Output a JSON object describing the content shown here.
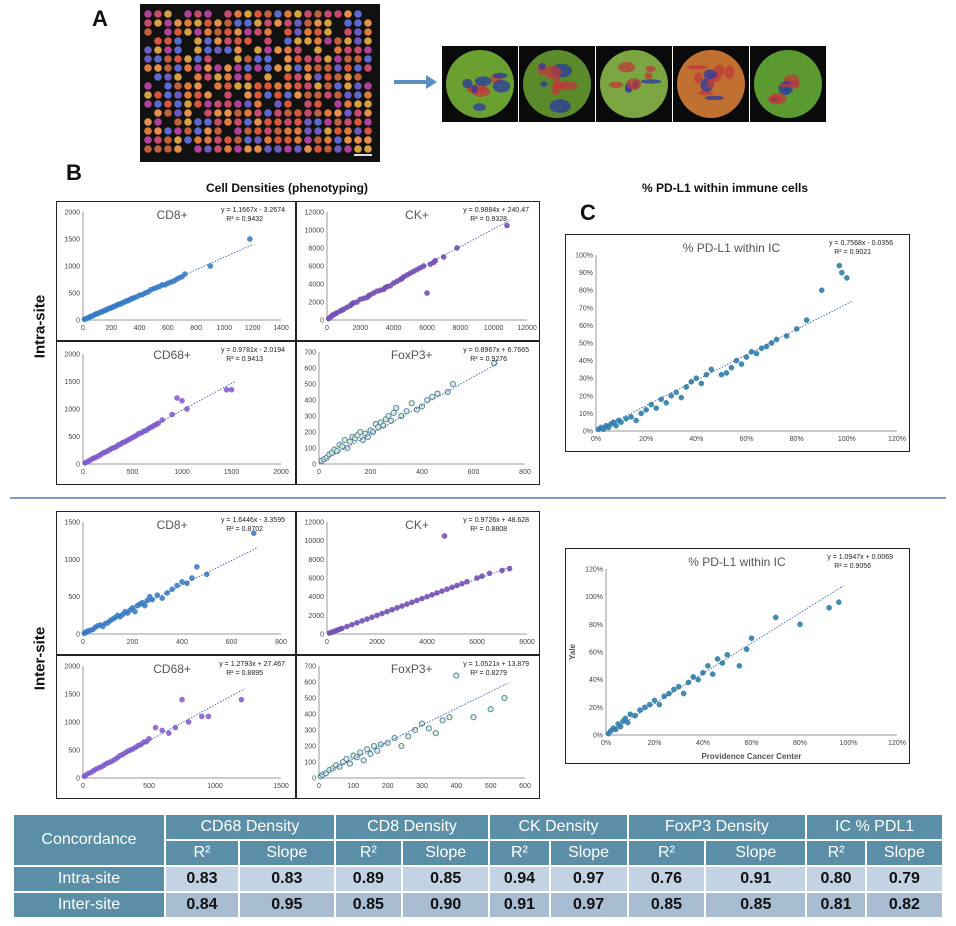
{
  "panel_labels": {
    "a": "A",
    "b": "B",
    "c": "C"
  },
  "headings": {
    "cell_densities": "Cell Densities (phenotyping)",
    "pdl1": "% PD-L1 within immune cells"
  },
  "side_labels": {
    "intra": "Intra-site",
    "inter": "Inter-site"
  },
  "colors": {
    "blue": "#3a7fc8",
    "purple": "#7a4fb5",
    "violet": "#8a5fd0",
    "foxp3_fill": "#d8ead0",
    "foxp3_edge": "#4a7fa0",
    "teal": "#2f7fa8",
    "table_header": "#5b8fa8"
  },
  "microscopy": {
    "stitched_image": "tissue-microarray-icon",
    "cores": [
      "core-1",
      "core-2",
      "core-3",
      "core-4",
      "core-5"
    ]
  },
  "chart_data": [
    {
      "id": "intra-cd8",
      "type": "scatter",
      "title": "CD8+",
      "equation": "y = 1.1667x - 3.2674",
      "r2": "R² = 0.9432",
      "slope": 1.1667,
      "intercept": -3.2674,
      "xlim": [
        0,
        1400
      ],
      "ylim": [
        0,
        2000
      ],
      "xticks": [
        "0",
        "200",
        "400",
        "600",
        "800",
        "1000",
        "1200",
        "1400"
      ],
      "yticks": [
        "0",
        "500",
        "1000",
        "1500",
        "2000"
      ],
      "color": "#3a7fc8",
      "x": [
        10,
        20,
        30,
        40,
        50,
        60,
        70,
        80,
        90,
        100,
        110,
        120,
        130,
        140,
        150,
        160,
        170,
        180,
        190,
        200,
        210,
        220,
        230,
        240,
        250,
        260,
        270,
        280,
        290,
        300,
        310,
        320,
        330,
        340,
        350,
        360,
        380,
        400,
        420,
        440,
        460,
        480,
        500,
        520,
        540,
        560,
        580,
        600,
        620,
        640,
        660,
        680,
        700,
        720,
        900,
        1180
      ],
      "y": [
        12,
        25,
        30,
        48,
        60,
        70,
        78,
        95,
        110,
        115,
        130,
        140,
        150,
        160,
        175,
        185,
        195,
        210,
        220,
        225,
        240,
        250,
        260,
        275,
        290,
        295,
        300,
        320,
        330,
        340,
        355,
        360,
        375,
        390,
        400,
        410,
        430,
        460,
        470,
        500,
        520,
        560,
        580,
        600,
        620,
        650,
        650,
        680,
        700,
        720,
        750,
        780,
        800,
        850,
        1000,
        1500
      ]
    },
    {
      "id": "intra-ck",
      "type": "scatter",
      "title": "CK+",
      "equation": "y = 0.9884x + 240.47",
      "r2": "R² = 0.9328",
      "slope": 0.9884,
      "intercept": 240.47,
      "xlim": [
        0,
        12000
      ],
      "ylim": [
        0,
        12000
      ],
      "xticks": [
        "0",
        "2000",
        "4000",
        "6000",
        "8000",
        "10000",
        "12000"
      ],
      "yticks": [
        "0",
        "2000",
        "4000",
        "6000",
        "8000",
        "10000",
        "12000"
      ],
      "color": "#7a4fb5",
      "x": [
        100,
        200,
        300,
        400,
        500,
        600,
        800,
        900,
        1000,
        1200,
        1400,
        1500,
        1600,
        1800,
        2000,
        2200,
        2400,
        2500,
        2600,
        2800,
        3000,
        3200,
        3400,
        3500,
        3600,
        3800,
        4000,
        4200,
        4400,
        4500,
        4600,
        4800,
        5000,
        5200,
        5400,
        5600,
        5800,
        6000,
        6200,
        6400,
        6500,
        7000,
        7800,
        10800
      ],
      "y": [
        150,
        300,
        500,
        600,
        700,
        800,
        1000,
        1100,
        1200,
        1400,
        1600,
        1800,
        1900,
        2000,
        2300,
        2400,
        2500,
        2700,
        2800,
        3000,
        3200,
        3300,
        3400,
        3600,
        3700,
        3800,
        4100,
        4300,
        4500,
        4600,
        4800,
        5000,
        5200,
        5400,
        5600,
        5800,
        6000,
        3000,
        6200,
        6400,
        6600,
        7000,
        8000,
        10500
      ]
    },
    {
      "id": "intra-cd68",
      "type": "scatter",
      "title": "CD68+",
      "equation": "y = 0.9781x - 2.0194",
      "r2": "R² = 0.9413",
      "slope": 0.9781,
      "intercept": -2.0194,
      "xlim": [
        0,
        2000
      ],
      "ylim": [
        0,
        2000
      ],
      "xticks": [
        "0",
        "500",
        "1000",
        "1500",
        "2000"
      ],
      "yticks": [
        "0",
        "500",
        "1000",
        "1500",
        "2000"
      ],
      "color": "#8a5fd0",
      "x": [
        20,
        40,
        60,
        80,
        100,
        120,
        140,
        160,
        180,
        200,
        220,
        240,
        260,
        280,
        300,
        320,
        340,
        360,
        380,
        400,
        420,
        440,
        460,
        480,
        500,
        520,
        540,
        560,
        580,
        600,
        620,
        640,
        660,
        680,
        700,
        720,
        740,
        760,
        800,
        900,
        950,
        1000,
        1050,
        1450,
        1500
      ],
      "y": [
        20,
        35,
        60,
        75,
        100,
        115,
        130,
        150,
        170,
        200,
        210,
        230,
        250,
        270,
        290,
        300,
        320,
        350,
        360,
        390,
        400,
        420,
        440,
        460,
        480,
        500,
        520,
        550,
        560,
        580,
        600,
        610,
        640,
        660,
        680,
        700,
        720,
        740,
        800,
        900,
        1200,
        1150,
        1000,
        1350,
        1350
      ]
    },
    {
      "id": "intra-foxp3",
      "type": "scatter",
      "title": "FoxP3+",
      "equation": "y = 0.8967x + 6.7665",
      "r2": "R² = 0.9276",
      "slope": 0.8967,
      "intercept": 6.7665,
      "xlim": [
        0,
        800
      ],
      "ylim": [
        0,
        700
      ],
      "xticks": [
        "0",
        "200",
        "400",
        "600",
        "800"
      ],
      "yticks": [
        "0",
        "100",
        "200",
        "300",
        "400",
        "500",
        "600",
        "700"
      ],
      "color": "#d8ead0",
      "edge": "#4a7fa0",
      "x": [
        10,
        20,
        30,
        40,
        50,
        60,
        70,
        80,
        90,
        100,
        110,
        120,
        130,
        140,
        150,
        160,
        170,
        180,
        190,
        200,
        210,
        220,
        230,
        240,
        250,
        260,
        270,
        280,
        290,
        300,
        320,
        340,
        360,
        380,
        400,
        420,
        440,
        460,
        500,
        520,
        680
      ],
      "y": [
        20,
        30,
        40,
        60,
        70,
        90,
        80,
        120,
        110,
        150,
        100,
        140,
        170,
        160,
        180,
        200,
        150,
        190,
        170,
        210,
        200,
        250,
        230,
        260,
        240,
        280,
        300,
        270,
        320,
        350,
        300,
        330,
        380,
        340,
        360,
        400,
        420,
        440,
        450,
        500,
        630
      ]
    },
    {
      "id": "inter-cd8",
      "type": "scatter",
      "title": "CD8+",
      "equation": "y = 1.6446x - 3.3595",
      "r2": "R² = 0.8702",
      "slope": 1.6446,
      "intercept": -3.3595,
      "xlim": [
        0,
        800
      ],
      "ylim": [
        0,
        1500
      ],
      "xticks": [
        "0",
        "200",
        "400",
        "600",
        "800"
      ],
      "yticks": [
        "0",
        "500",
        "1000",
        "1500"
      ],
      "color": "#3a7fc8",
      "x": [
        5,
        10,
        15,
        20,
        30,
        40,
        50,
        60,
        70,
        80,
        90,
        100,
        110,
        120,
        130,
        140,
        150,
        160,
        170,
        180,
        190,
        200,
        210,
        220,
        230,
        240,
        250,
        260,
        270,
        280,
        300,
        320,
        340,
        360,
        380,
        400,
        420,
        440,
        460,
        500,
        690
      ],
      "y": [
        10,
        20,
        30,
        40,
        50,
        60,
        90,
        110,
        120,
        100,
        140,
        150,
        180,
        200,
        220,
        250,
        230,
        260,
        300,
        280,
        320,
        350,
        300,
        380,
        400,
        420,
        380,
        450,
        500,
        460,
        520,
        480,
        550,
        600,
        650,
        700,
        680,
        750,
        900,
        800,
        1350
      ]
    },
    {
      "id": "inter-ck",
      "type": "scatter",
      "title": "CK+",
      "equation": "y = 0.9726x + 48.628",
      "r2": "R² = 0.8808",
      "slope": 0.9726,
      "intercept": 48.628,
      "xlim": [
        0,
        8000
      ],
      "ylim": [
        0,
        12000
      ],
      "xticks": [
        "0",
        "2000",
        "4000",
        "6000",
        "8000"
      ],
      "yticks": [
        "0",
        "2000",
        "4000",
        "6000",
        "8000",
        "10000",
        "12000"
      ],
      "color": "#7a4fb5",
      "x": [
        100,
        200,
        300,
        400,
        500,
        600,
        800,
        1000,
        1200,
        1400,
        1600,
        1800,
        2000,
        2200,
        2400,
        2600,
        2800,
        3000,
        3200,
        3400,
        3600,
        3800,
        4000,
        4200,
        4400,
        4600,
        4800,
        5000,
        5200,
        5400,
        5600,
        6000,
        6200,
        6500,
        7000,
        7300,
        4700
      ],
      "y": [
        100,
        200,
        300,
        400,
        500,
        600,
        800,
        1000,
        1200,
        1400,
        1600,
        1800,
        2000,
        2200,
        2400,
        2600,
        2800,
        3000,
        3200,
        3400,
        3600,
        3800,
        4000,
        4200,
        4400,
        4600,
        4800,
        5000,
        5200,
        5400,
        5600,
        6000,
        6200,
        6500,
        6800,
        7000,
        10500
      ]
    },
    {
      "id": "inter-cd68",
      "type": "scatter",
      "title": "CD68+",
      "equation": "y = 1.2793x + 27.467",
      "r2": "R² = 0.8895",
      "slope": 1.2793,
      "intercept": 27.467,
      "xlim": [
        0,
        1500
      ],
      "ylim": [
        0,
        2000
      ],
      "xticks": [
        "0",
        "500",
        "1000",
        "1500"
      ],
      "yticks": [
        "0",
        "500",
        "1000",
        "1500",
        "2000"
      ],
      "color": "#8a5fd0",
      "x": [
        10,
        20,
        40,
        60,
        80,
        100,
        120,
        140,
        160,
        180,
        200,
        220,
        240,
        260,
        280,
        300,
        320,
        340,
        360,
        380,
        400,
        420,
        440,
        460,
        480,
        500,
        550,
        600,
        650,
        700,
        750,
        800,
        900,
        950,
        1200
      ],
      "y": [
        30,
        50,
        80,
        100,
        130,
        160,
        180,
        200,
        230,
        260,
        280,
        300,
        330,
        360,
        400,
        420,
        450,
        480,
        500,
        520,
        550,
        580,
        600,
        640,
        650,
        700,
        900,
        850,
        800,
        900,
        1400,
        1000,
        1100,
        1100,
        1400
      ]
    },
    {
      "id": "inter-foxp3",
      "type": "scatter",
      "title": "FoxP3+",
      "equation": "y = 1.0521x + 13.879",
      "r2": "R² = 0.8279",
      "slope": 1.0521,
      "intercept": 13.879,
      "xlim": [
        0,
        600
      ],
      "ylim": [
        0,
        700
      ],
      "xticks": [
        "0",
        "100",
        "200",
        "300",
        "400",
        "500",
        "600"
      ],
      "yticks": [
        "0",
        "100",
        "200",
        "300",
        "400",
        "500",
        "600",
        "700"
      ],
      "color": "#d8ead0",
      "edge": "#4a7fa0",
      "x": [
        5,
        10,
        20,
        30,
        40,
        50,
        60,
        70,
        80,
        90,
        100,
        110,
        120,
        130,
        140,
        150,
        160,
        170,
        180,
        200,
        220,
        240,
        260,
        280,
        300,
        320,
        340,
        360,
        380,
        400,
        450,
        500,
        540
      ],
      "y": [
        10,
        20,
        30,
        50,
        60,
        80,
        70,
        100,
        120,
        90,
        140,
        130,
        160,
        110,
        180,
        150,
        200,
        170,
        210,
        220,
        250,
        200,
        260,
        300,
        340,
        310,
        280,
        360,
        380,
        640,
        380,
        430,
        500
      ]
    },
    {
      "id": "intra-pdl1",
      "type": "scatter",
      "title": "% PD-L1 within IC",
      "equation": "y = 0.7568x - 0.0356",
      "r2": "R² = 0.9021",
      "slope": 0.7568,
      "intercept": -0.0356,
      "xlim": [
        0,
        1.2
      ],
      "ylim": [
        0,
        1.0
      ],
      "xticks": [
        "0%",
        "20%",
        "40%",
        "60%",
        "80%",
        "100%",
        "120%"
      ],
      "yticks": [
        "0%",
        "10%",
        "20%",
        "30%",
        "40%",
        "50%",
        "60%",
        "70%",
        "80%",
        "90%",
        "100%"
      ],
      "color": "#2f7fa8",
      "x": [
        0.01,
        0.02,
        0.03,
        0.04,
        0.05,
        0.06,
        0.07,
        0.08,
        0.09,
        0.1,
        0.12,
        0.14,
        0.16,
        0.18,
        0.2,
        0.22,
        0.24,
        0.26,
        0.28,
        0.3,
        0.32,
        0.34,
        0.36,
        0.38,
        0.4,
        0.42,
        0.44,
        0.46,
        0.5,
        0.52,
        0.54,
        0.56,
        0.58,
        0.6,
        0.62,
        0.64,
        0.66,
        0.68,
        0.7,
        0.72,
        0.76,
        0.8,
        0.84,
        0.9,
        0.97,
        0.98,
        1.0
      ],
      "y": [
        0.01,
        0.02,
        0.01,
        0.03,
        0.02,
        0.04,
        0.05,
        0.03,
        0.06,
        0.05,
        0.07,
        0.08,
        0.06,
        0.1,
        0.12,
        0.15,
        0.13,
        0.18,
        0.16,
        0.2,
        0.22,
        0.19,
        0.25,
        0.28,
        0.3,
        0.27,
        0.32,
        0.35,
        0.32,
        0.33,
        0.36,
        0.4,
        0.38,
        0.42,
        0.45,
        0.44,
        0.47,
        0.48,
        0.5,
        0.52,
        0.54,
        0.58,
        0.63,
        0.8,
        0.94,
        0.9,
        0.87
      ]
    },
    {
      "id": "inter-pdl1",
      "type": "scatter",
      "title": "% PD-L1 within IC",
      "equation": "y = 1.0947x + 0.0069",
      "r2": "R² = 0.9056",
      "slope": 1.0947,
      "intercept": 0.0069,
      "xlim": [
        0,
        1.2
      ],
      "ylim": [
        0,
        1.2
      ],
      "xticks": [
        "0%",
        "20%",
        "40%",
        "60%",
        "80%",
        "100%",
        "120%"
      ],
      "yticks": [
        "0%",
        "20%",
        "40%",
        "60%",
        "80%",
        "100%",
        "120%"
      ],
      "color": "#2f7fa8",
      "xlabel": "Providence Cancer Center",
      "ylabel": "Yale",
      "x": [
        0.01,
        0.02,
        0.03,
        0.04,
        0.05,
        0.06,
        0.07,
        0.08,
        0.09,
        0.1,
        0.12,
        0.14,
        0.16,
        0.18,
        0.2,
        0.22,
        0.24,
        0.26,
        0.28,
        0.3,
        0.32,
        0.34,
        0.36,
        0.38,
        0.4,
        0.42,
        0.44,
        0.46,
        0.48,
        0.5,
        0.55,
        0.58,
        0.6,
        0.7,
        0.8,
        0.92,
        0.96
      ],
      "y": [
        0.01,
        0.03,
        0.05,
        0.04,
        0.08,
        0.06,
        0.1,
        0.12,
        0.09,
        0.15,
        0.14,
        0.18,
        0.2,
        0.22,
        0.25,
        0.22,
        0.28,
        0.3,
        0.33,
        0.35,
        0.3,
        0.38,
        0.42,
        0.4,
        0.45,
        0.5,
        0.44,
        0.55,
        0.52,
        0.58,
        0.5,
        0.62,
        0.7,
        0.85,
        0.8,
        0.92,
        0.96
      ]
    }
  ],
  "table": {
    "corner": "Concordance",
    "groups": [
      "CD68 Density",
      "CD8 Density",
      "CK Density",
      "FoxP3 Density",
      "IC % PDL1"
    ],
    "subheaders": [
      "R²",
      "Slope",
      "R²",
      "Slope",
      "R²",
      "Slope",
      "R²",
      "Slope",
      "R²",
      "Slope"
    ],
    "rows": [
      {
        "label": "Intra-site",
        "values": [
          "0.83",
          "0.83",
          "0.89",
          "0.85",
          "0.94",
          "0.97",
          "0.76",
          "0.91",
          "0.80",
          "0.79"
        ]
      },
      {
        "label": "Inter-site",
        "values": [
          "0.84",
          "0.95",
          "0.85",
          "0.90",
          "0.91",
          "0.97",
          "0.85",
          "0.85",
          "0.81",
          "0.82"
        ]
      }
    ]
  }
}
